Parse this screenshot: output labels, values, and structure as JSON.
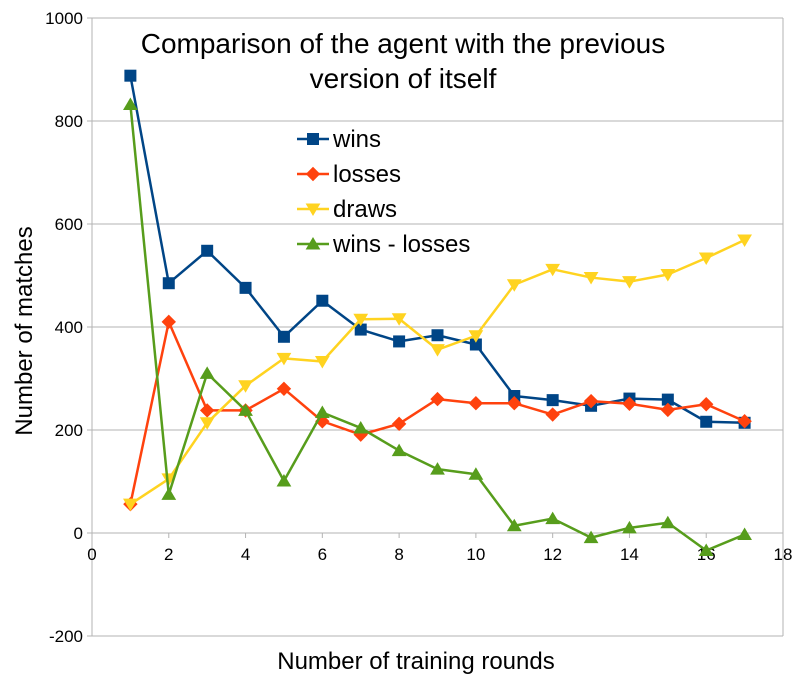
{
  "chart_data": {
    "type": "line",
    "title_lines": [
      "Comparison of the agent with the previous",
      "version of itself"
    ],
    "xlabel": "Number of training rounds",
    "ylabel": "Number of matches",
    "xlim": [
      0,
      18
    ],
    "ylim": [
      -200,
      1000
    ],
    "x_ticks": [
      0,
      2,
      4,
      6,
      8,
      10,
      12,
      14,
      16,
      18
    ],
    "y_ticks": [
      -200,
      0,
      200,
      400,
      600,
      800,
      1000
    ],
    "grid": "horizontal",
    "legend_position": "upper-middle",
    "x": [
      1,
      2,
      3,
      4,
      5,
      6,
      7,
      8,
      9,
      10,
      11,
      12,
      13,
      14,
      15,
      16,
      17
    ],
    "series": [
      {
        "name": "wins",
        "color": "#004586",
        "marker": "square",
        "values": [
          888,
          485,
          548,
          476,
          381,
          451,
          395,
          372,
          384,
          366,
          266,
          258,
          247,
          261,
          259,
          216,
          214
        ]
      },
      {
        "name": "losses",
        "color": "#ff420e",
        "marker": "diamond",
        "values": [
          56,
          410,
          238,
          238,
          280,
          217,
          191,
          212,
          260,
          252,
          252,
          230,
          256,
          251,
          239,
          250,
          217
        ]
      },
      {
        "name": "draws",
        "color": "#ffd320",
        "marker": "triangle-down",
        "values": [
          56,
          105,
          214,
          286,
          339,
          333,
          415,
          416,
          356,
          383,
          482,
          512,
          496,
          488,
          502,
          534,
          569
        ]
      },
      {
        "name": "wins - losses",
        "color": "#579d1c",
        "marker": "triangle-up",
        "values": [
          832,
          75,
          310,
          238,
          101,
          234,
          204,
          160,
          124,
          114,
          14,
          28,
          -9,
          10,
          20,
          -34,
          -3
        ]
      }
    ]
  }
}
